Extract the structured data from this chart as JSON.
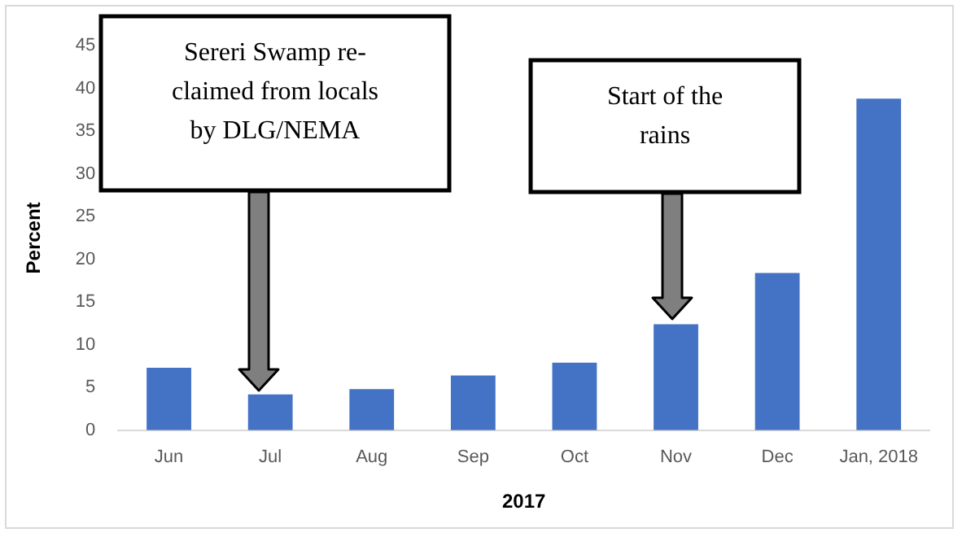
{
  "chart_data": {
    "type": "bar",
    "xlabel": "2017",
    "ylabel": "Percent",
    "categories": [
      "Jun",
      "Jul",
      "Aug",
      "Sep",
      "Oct",
      "Nov",
      "Dec",
      "Jan, 2018"
    ],
    "values": [
      7.3,
      4.2,
      4.8,
      6.4,
      7.9,
      12.4,
      18.4,
      38.8
    ],
    "color": "#4472c4",
    "ylim": [
      0,
      45
    ],
    "yticks": [
      0,
      5,
      10,
      15,
      20,
      25,
      30,
      35,
      40,
      45
    ],
    "grid": false,
    "legend": false,
    "annotations": [
      "Sereri Swamp re-claimed from locals by DLG/NEMA",
      "Start of the rains"
    ]
  }
}
